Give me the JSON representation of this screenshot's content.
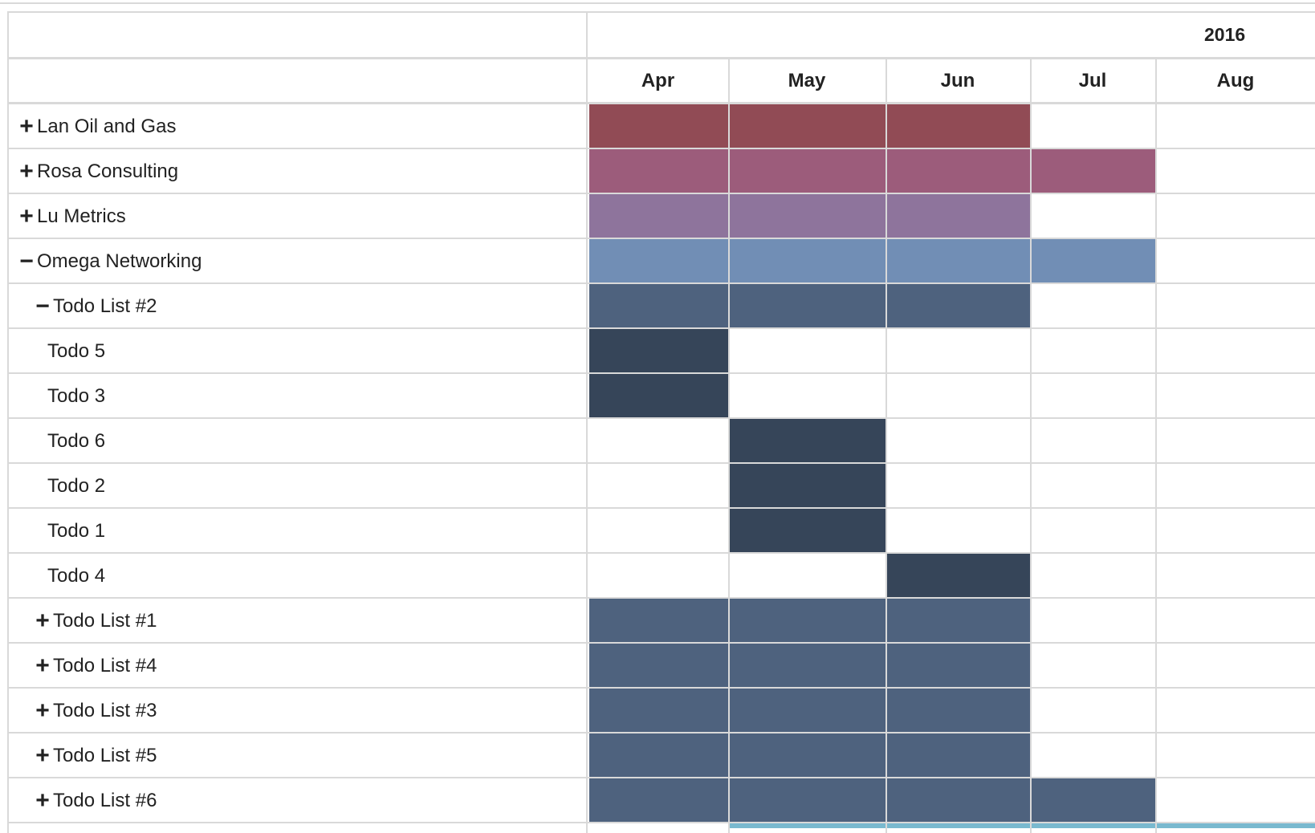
{
  "colors": {
    "border": "#d9d9d9",
    "lan_oil_and_gas": "#914b55",
    "rosa_consulting": "#9c5c7b",
    "lu_metrics": "#8e749c",
    "omega_networking": "#718eb5",
    "todo_list": "#4e627e",
    "todo": "#364559",
    "teal_peek": "#79b9cf"
  },
  "header": {
    "year": "2016",
    "months": [
      "Apr",
      "May",
      "Jun",
      "Jul",
      "Aug"
    ]
  },
  "rows": [
    {
      "label": "Lan Oil and Gas",
      "toggle": "+",
      "indent": 0,
      "bar_color": "lan_oil_and_gas",
      "active_months": [
        "Apr",
        "May",
        "Jun"
      ]
    },
    {
      "label": "Rosa Consulting",
      "toggle": "+",
      "indent": 0,
      "bar_color": "rosa_consulting",
      "active_months": [
        "Apr",
        "May",
        "Jun",
        "Jul"
      ]
    },
    {
      "label": "Lu Metrics",
      "toggle": "+",
      "indent": 0,
      "bar_color": "lu_metrics",
      "active_months": [
        "Apr",
        "May",
        "Jun"
      ]
    },
    {
      "label": "Omega Networking",
      "toggle": "−",
      "indent": 0,
      "bar_color": "omega_networking",
      "active_months": [
        "Apr",
        "May",
        "Jun",
        "Jul"
      ]
    },
    {
      "label": "Todo List #2",
      "toggle": "−",
      "indent": 1,
      "bar_color": "todo_list",
      "active_months": [
        "Apr",
        "May",
        "Jun"
      ]
    },
    {
      "label": "Todo 5",
      "toggle": "",
      "indent": 2,
      "bar_color": "todo",
      "active_months": [
        "Apr"
      ]
    },
    {
      "label": "Todo 3",
      "toggle": "",
      "indent": 2,
      "bar_color": "todo",
      "active_months": [
        "Apr"
      ]
    },
    {
      "label": "Todo 6",
      "toggle": "",
      "indent": 2,
      "bar_color": "todo",
      "active_months": [
        "May"
      ]
    },
    {
      "label": "Todo 2",
      "toggle": "",
      "indent": 2,
      "bar_color": "todo",
      "active_months": [
        "May"
      ]
    },
    {
      "label": "Todo 1",
      "toggle": "",
      "indent": 2,
      "bar_color": "todo",
      "active_months": [
        "May"
      ]
    },
    {
      "label": "Todo 4",
      "toggle": "",
      "indent": 2,
      "bar_color": "todo",
      "active_months": [
        "Jun"
      ]
    },
    {
      "label": "Todo List #1",
      "toggle": "+",
      "indent": 1,
      "bar_color": "todo_list",
      "active_months": [
        "Apr",
        "May",
        "Jun"
      ]
    },
    {
      "label": "Todo List #4",
      "toggle": "+",
      "indent": 1,
      "bar_color": "todo_list",
      "active_months": [
        "Apr",
        "May",
        "Jun"
      ]
    },
    {
      "label": "Todo List #3",
      "toggle": "+",
      "indent": 1,
      "bar_color": "todo_list",
      "active_months": [
        "Apr",
        "May",
        "Jun"
      ]
    },
    {
      "label": "Todo List #5",
      "toggle": "+",
      "indent": 1,
      "bar_color": "todo_list",
      "active_months": [
        "Apr",
        "May",
        "Jun"
      ]
    },
    {
      "label": "Todo List #6",
      "toggle": "+",
      "indent": 1,
      "bar_color": "todo_list",
      "active_months": [
        "Apr",
        "May",
        "Jun",
        "Jul"
      ]
    }
  ]
}
